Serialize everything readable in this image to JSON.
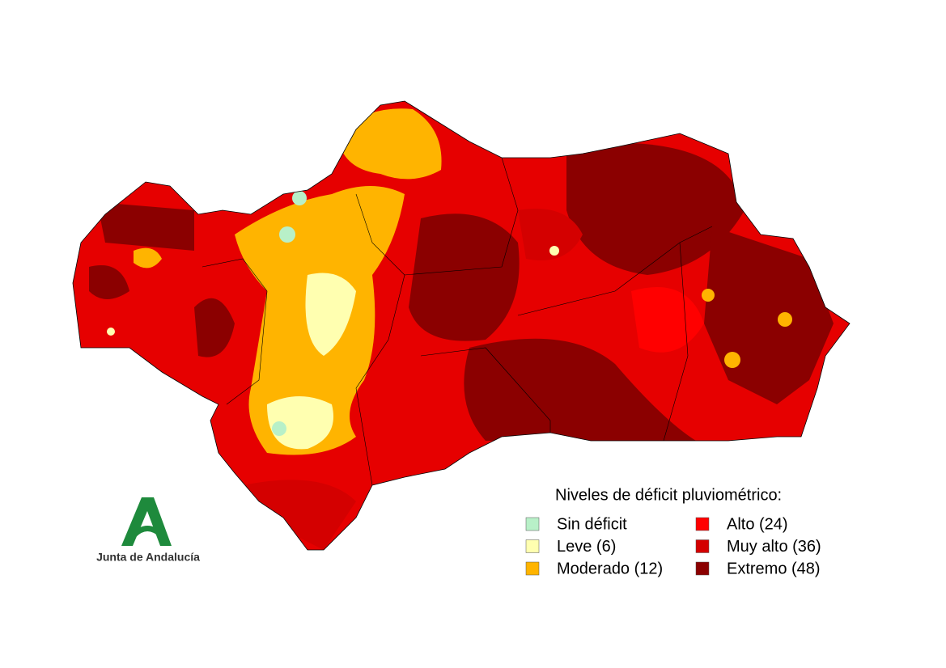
{
  "legend": {
    "title": "Niveles de déficit pluviométrico:",
    "items": [
      {
        "label": "Sin déficit",
        "color": "#b8f0c8"
      },
      {
        "label": "Leve (6)",
        "color": "#ffffb0"
      },
      {
        "label": "Moderado (12)",
        "color": "#ffb400"
      },
      {
        "label": "Alto (24)",
        "color": "#ff0000"
      },
      {
        "label": "Muy alto (36)",
        "color": "#d40000"
      },
      {
        "label": "Extremo (48)",
        "color": "#8b0000"
      }
    ]
  },
  "logo": {
    "text": "Junta de Andalucía"
  }
}
